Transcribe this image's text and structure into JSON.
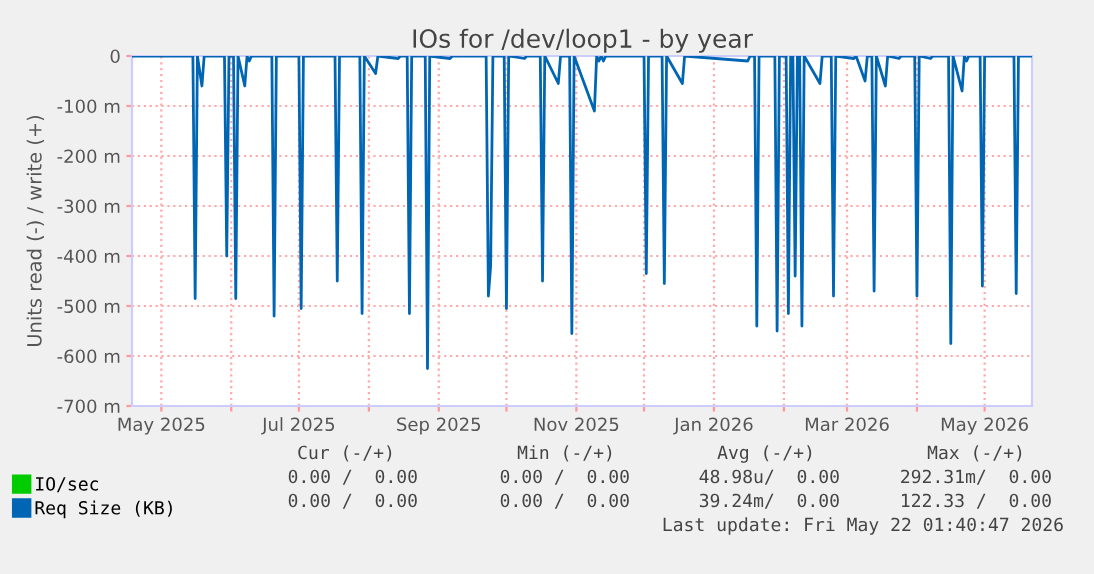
{
  "chart_data": {
    "type": "line",
    "title": "IOs for /dev/loop1 - by year",
    "ylabel": "Units read (-) / write (+)",
    "x": [
      "2025-04-18",
      "2025-05-15",
      "2025-05-16",
      "2025-05-17",
      "2025-05-19",
      "2025-05-20",
      "2025-05-29",
      "2025-05-30",
      "2025-05-31",
      "2025-06-02",
      "2025-06-03",
      "2025-06-04",
      "2025-06-07",
      "2025-06-08",
      "2025-06-09",
      "2025-06-10",
      "2025-06-19",
      "2025-06-20",
      "2025-06-21",
      "2025-07-01",
      "2025-07-02",
      "2025-07-03",
      "2025-07-17",
      "2025-07-18",
      "2025-07-19",
      "2025-07-28",
      "2025-07-29",
      "2025-07-30",
      "2025-08-04",
      "2025-08-05",
      "2025-08-14",
      "2025-08-15",
      "2025-08-18",
      "2025-08-19",
      "2025-08-20",
      "2025-08-26",
      "2025-08-27",
      "2025-08-28",
      "2025-09-06",
      "2025-09-07",
      "2025-09-22",
      "2025-09-23",
      "2025-09-24",
      "2025-09-25",
      "2025-09-30",
      "2025-10-01",
      "2025-10-02",
      "2025-10-09",
      "2025-10-10",
      "2025-10-16",
      "2025-10-17",
      "2025-10-18",
      "2025-10-24",
      "2025-10-25",
      "2025-10-29",
      "2025-10-30",
      "2025-10-31",
      "2025-11-09",
      "2025-11-10",
      "2025-11-11",
      "2025-11-12",
      "2025-11-13",
      "2025-11-14",
      "2025-12-01",
      "2025-12-02",
      "2025-12-03",
      "2025-12-09",
      "2025-12-10",
      "2025-12-11",
      "2025-12-18",
      "2025-12-19",
      "2026-01-16",
      "2026-01-17",
      "2026-01-19",
      "2026-01-20",
      "2026-01-21",
      "2026-01-28",
      "2026-01-29",
      "2026-01-30",
      "2026-02-02",
      "2026-02-03",
      "2026-02-04",
      "2026-02-05",
      "2026-02-06",
      "2026-02-07",
      "2026-02-08",
      "2026-02-09",
      "2026-02-10",
      "2026-02-17",
      "2026-02-18",
      "2026-02-22",
      "2026-02-23",
      "2026-02-24",
      "2026-03-04",
      "2026-03-05",
      "2026-03-09",
      "2026-03-10",
      "2026-03-12",
      "2026-03-13",
      "2026-03-14",
      "2026-03-18",
      "2026-03-19",
      "2026-03-24",
      "2026-03-25",
      "2026-03-31",
      "2026-04-01",
      "2026-04-02",
      "2026-04-07",
      "2026-04-08",
      "2026-04-15",
      "2026-04-16",
      "2026-04-17",
      "2026-04-21",
      "2026-04-22",
      "2026-04-23",
      "2026-04-24",
      "2026-04-29",
      "2026-04-30",
      "2026-05-01",
      "2026-05-14",
      "2026-05-15",
      "2026-05-16",
      "2026-05-22"
    ],
    "series": [
      {
        "name": "IO/sec",
        "color": "#00cc00",
        "values": [
          null,
          null,
          null,
          null,
          null,
          null,
          null,
          null,
          null,
          null,
          null,
          null,
          null,
          null,
          null,
          null,
          null,
          null,
          null,
          null,
          null,
          null,
          null,
          null,
          null,
          null,
          null,
          null,
          null,
          null,
          null,
          null,
          null,
          null,
          null,
          null,
          null,
          null,
          null,
          null,
          null,
          null,
          null,
          null,
          null,
          null,
          null,
          null,
          null,
          null,
          null,
          null,
          null,
          null,
          null,
          null,
          null,
          null,
          null,
          null,
          null,
          null,
          null,
          null,
          null,
          null,
          null,
          null,
          null,
          null,
          null,
          null,
          null,
          null,
          null,
          null,
          null,
          null,
          null,
          null,
          null,
          null,
          null,
          null,
          null,
          null,
          null,
          null,
          null,
          null,
          null,
          null,
          null,
          null,
          null,
          null,
          null,
          null,
          null,
          null,
          null,
          null,
          null,
          null,
          null,
          null,
          null,
          null,
          null,
          null,
          null,
          null,
          null,
          null,
          null,
          null,
          null,
          null,
          null,
          null,
          null,
          null,
          null
        ]
      },
      {
        "name": "Req Size (KB)",
        "color": "#0066b3",
        "values": [
          0,
          0,
          -485,
          0,
          -60,
          0,
          0,
          -400,
          0,
          0,
          -485,
          0,
          -60,
          0,
          -10,
          0,
          0,
          -520,
          0,
          0,
          -505,
          0,
          0,
          -450,
          0,
          0,
          -515,
          0,
          -35,
          0,
          -5,
          0,
          0,
          -515,
          0,
          0,
          -625,
          0,
          -5,
          0,
          0,
          -480,
          -420,
          0,
          0,
          -505,
          0,
          -5,
          0,
          0,
          -450,
          0,
          -55,
          0,
          0,
          -555,
          0,
          -110,
          0,
          -10,
          0,
          -10,
          0,
          0,
          -435,
          0,
          0,
          -455,
          0,
          -55,
          0,
          -10,
          0,
          0,
          -540,
          0,
          0,
          -550,
          0,
          0,
          -515,
          0,
          0,
          -440,
          0,
          0,
          -540,
          0,
          -55,
          0,
          0,
          -480,
          0,
          -5,
          0,
          -50,
          0,
          0,
          -470,
          0,
          -60,
          0,
          -5,
          0,
          0,
          -480,
          0,
          -5,
          0,
          0,
          -575,
          0,
          -70,
          0,
          -10,
          0,
          0,
          -460,
          0,
          0,
          -475,
          0,
          0
        ]
      }
    ],
    "xlim": [
      "2025-04-18",
      "2026-05-22"
    ],
    "xticks": [
      {
        "value": "2025-05-01",
        "label": "May 2025"
      },
      {
        "value": "2025-06-01",
        "label": null
      },
      {
        "value": "2025-07-01",
        "label": "Jul 2025"
      },
      {
        "value": "2025-08-01",
        "label": null
      },
      {
        "value": "2025-09-01",
        "label": "Sep 2025"
      },
      {
        "value": "2025-10-01",
        "label": null
      },
      {
        "value": "2025-11-01",
        "label": "Nov 2025"
      },
      {
        "value": "2025-12-01",
        "label": null
      },
      {
        "value": "2026-01-01",
        "label": "Jan 2026"
      },
      {
        "value": "2026-02-01",
        "label": null
      },
      {
        "value": "2026-03-01",
        "label": "Mar 2026"
      },
      {
        "value": "2026-04-01",
        "label": null
      },
      {
        "value": "2026-05-01",
        "label": "May 2026"
      }
    ],
    "ylim": [
      -700,
      0
    ],
    "yticks": [
      0,
      {
        "value": -100,
        "label": "-100 m"
      },
      {
        "value": -200,
        "label": "-200 m"
      },
      {
        "value": -300,
        "label": "-300 m"
      },
      {
        "value": -400,
        "label": "-400 m"
      },
      {
        "value": -500,
        "label": "-500 m"
      },
      {
        "value": -600,
        "label": "-600 m"
      },
      {
        "value": -700,
        "label": "-700 m"
      }
    ],
    "grid": true,
    "legend": "bottom left",
    "marker": "none",
    "line_style": "solid",
    "annotations": [
      "Cur (-/+)",
      "Min (-/+)",
      "Avg (-/+)",
      "Max (-/+)",
      "0.00 /  0.00",
      "0.00 /  0.00",
      "48.98u/  0.00",
      "292.31m/  0.00",
      "0.00 /  0.00",
      "0.00 /  0.00",
      "39.24m/  0.00",
      "122.33 /  0.00",
      "Last update: Fri May 22 01:40:47 2026"
    ]
  }
}
